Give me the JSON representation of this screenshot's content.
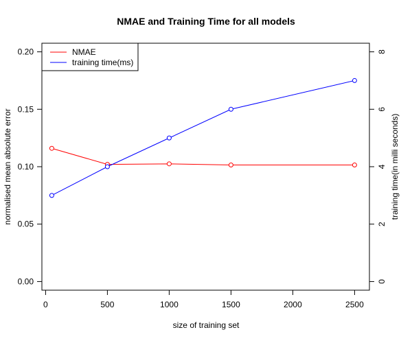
{
  "chart_data": {
    "type": "line",
    "title": "NMAE and Training Time for all models",
    "xlabel": "size of training set",
    "ylabel_left": "normalised mean absolute error",
    "ylabel_right": "training time(in milli seconds)",
    "xlim": [
      -30,
      2620
    ],
    "ylim_left": [
      -0.0075,
      0.2075
    ],
    "ylim_right": [
      -0.3,
      8.3
    ],
    "x_ticks": [
      0,
      500,
      1000,
      1500,
      2000,
      2500
    ],
    "x_tick_labels": [
      "0",
      "500",
      "1000",
      "1500",
      "2000",
      "2500"
    ],
    "y_left_ticks": [
      0.0,
      0.05,
      0.1,
      0.15,
      0.2
    ],
    "y_left_tick_labels": [
      "0.00",
      "0.05",
      "0.10",
      "0.15",
      "0.20"
    ],
    "y_right_ticks": [
      0,
      2,
      4,
      6,
      8
    ],
    "y_right_tick_labels": [
      "0",
      "2",
      "4",
      "6",
      "8"
    ],
    "grid": false,
    "legend_position": "top-left",
    "series": [
      {
        "name": "NMAE",
        "axis": "left",
        "color": "#ff0000",
        "x": [
          50,
          500,
          1000,
          1500,
          2500
        ],
        "values": [
          0.116,
          0.102,
          0.1025,
          0.1015,
          0.1015
        ]
      },
      {
        "name": "training time(ms)",
        "axis": "right",
        "color": "#0000ff",
        "x": [
          50,
          500,
          1000,
          1500,
          2500
        ],
        "values": [
          3.0,
          4.0,
          5.0,
          6.0,
          7.0
        ]
      }
    ]
  }
}
